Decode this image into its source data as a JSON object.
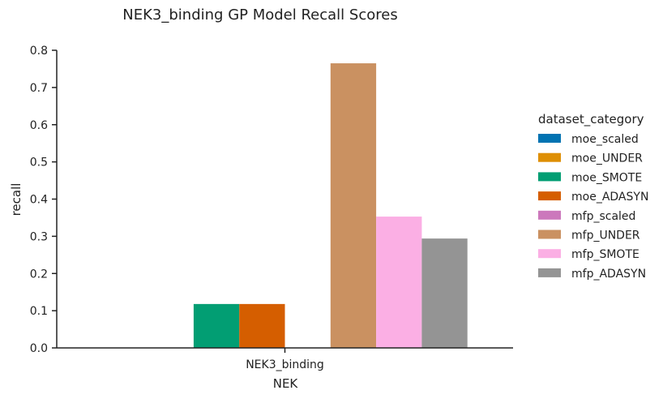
{
  "chart_data": {
    "type": "bar",
    "title": "NEK3_binding GP Model Recall Scores",
    "xlabel": "NEK",
    "ylabel": "recall",
    "categories": [
      "NEK3_binding"
    ],
    "ylim": [
      0,
      0.8
    ],
    "yticks": [
      "0.0",
      "0.1",
      "0.2",
      "0.3",
      "0.4",
      "0.5",
      "0.6",
      "0.7",
      "0.8"
    ],
    "grid": false,
    "legend_title": "dataset_category",
    "legend_position": "right",
    "series": [
      {
        "name": "moe_scaled",
        "values": [
          0.0
        ],
        "color": "#0173b2"
      },
      {
        "name": "moe_UNDER",
        "values": [
          0.0
        ],
        "color": "#de8f05"
      },
      {
        "name": "moe_SMOTE",
        "values": [
          0.118
        ],
        "color": "#029e73"
      },
      {
        "name": "moe_ADASYN",
        "values": [
          0.118
        ],
        "color": "#d55e00"
      },
      {
        "name": "mfp_scaled",
        "values": [
          0.0
        ],
        "color": "#cc78bc"
      },
      {
        "name": "mfp_UNDER",
        "values": [
          0.765
        ],
        "color": "#ca9161"
      },
      {
        "name": "mfp_SMOTE",
        "values": [
          0.353
        ],
        "color": "#fbafe4"
      },
      {
        "name": "mfp_ADASYN",
        "values": [
          0.294
        ],
        "color": "#949494"
      }
    ]
  }
}
